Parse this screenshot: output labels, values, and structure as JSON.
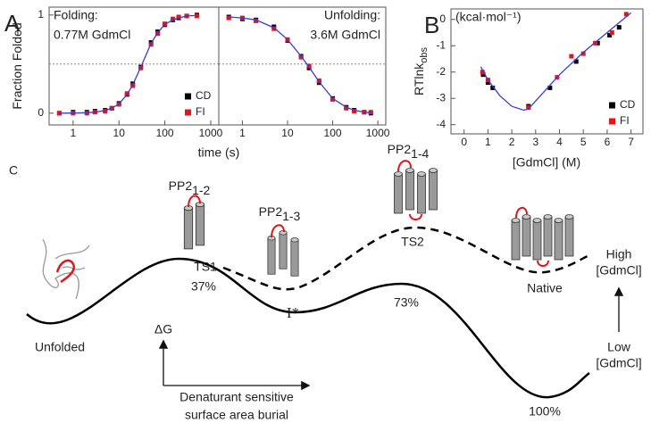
{
  "chart_data": [
    {
      "type": "scatter",
      "panel_label": "A",
      "xlog": true,
      "ylabel": "Fraction Folded",
      "xlabel": "time (s)",
      "annotation": [
        "Folding:",
        "0.77M GdmCl"
      ],
      "xlim": [
        0.3,
        1500
      ],
      "xticks": [
        1,
        10,
        100,
        1000
      ],
      "ylim": [
        -0.12,
        1.08
      ],
      "yticks": [
        0,
        1
      ],
      "hline": 0.5,
      "legend": "lower right",
      "x": [
        0.5,
        1,
        2,
        3,
        5,
        7,
        10,
        15,
        20,
        30,
        50,
        70,
        100,
        150,
        200,
        300,
        500
      ],
      "series": [
        {
          "name": "CD",
          "color": "#000000",
          "values": [
            0.0,
            0.01,
            0.01,
            0.02,
            0.03,
            0.05,
            0.1,
            0.19,
            0.3,
            0.47,
            0.72,
            0.83,
            0.9,
            0.95,
            0.97,
            0.99,
            1.0
          ]
        },
        {
          "name": "FI",
          "color": "#e0161b",
          "values": [
            0.0,
            0.0,
            0.0,
            0.01,
            0.02,
            0.05,
            0.09,
            0.2,
            0.28,
            0.46,
            0.7,
            0.81,
            0.91,
            0.96,
            0.98,
            0.99,
            0.99
          ]
        },
        {
          "mode": "line",
          "color": "#3b3bd6",
          "values": [
            0.0,
            0.001,
            0.005,
            0.01,
            0.027,
            0.05,
            0.095,
            0.19,
            0.29,
            0.47,
            0.71,
            0.82,
            0.905,
            0.95,
            0.97,
            0.99,
            0.995
          ]
        }
      ]
    },
    {
      "type": "scatter",
      "xlog": true,
      "annotation": [
        "Unfolding:",
        "3.6M GdmCl"
      ],
      "xlim": [
        0.3,
        1500
      ],
      "xticks": [
        1,
        10,
        100,
        1000
      ],
      "ylim": [
        -0.12,
        1.08
      ],
      "hline": 0.5,
      "x": [
        0.5,
        1,
        2,
        5,
        10,
        20,
        30,
        50,
        100,
        200,
        300,
        500,
        700
      ],
      "series": [
        {
          "color": "#000000",
          "values": [
            0.98,
            0.96,
            0.95,
            0.88,
            0.74,
            0.58,
            0.46,
            0.31,
            0.15,
            0.06,
            0.03,
            0.01,
            0.0
          ]
        },
        {
          "color": "#e0161b",
          "values": [
            0.97,
            0.97,
            0.94,
            0.86,
            0.75,
            0.57,
            0.48,
            0.33,
            0.14,
            0.05,
            0.02,
            0.01,
            0.01
          ]
        },
        {
          "mode": "line",
          "color": "#3b3bd6",
          "values": [
            0.98,
            0.97,
            0.95,
            0.87,
            0.75,
            0.58,
            0.47,
            0.32,
            0.15,
            0.06,
            0.03,
            0.01,
            0.005
          ]
        }
      ]
    },
    {
      "type": "scatter",
      "panel_label": "B",
      "xlog": false,
      "ylabel": "RTlnk",
      "ylabel_sub": "obs",
      "xlabel": "[GdmCl] (M)",
      "annotation": [
        "(kcal·mol⁻¹)"
      ],
      "xlim": [
        -0.55,
        7.5
      ],
      "xticks": [
        0,
        1,
        2,
        3,
        4,
        5,
        6,
        7
      ],
      "ylim": [
        -4.35,
        0.4
      ],
      "yticks": [
        0,
        -1,
        -2,
        -3,
        -4
      ],
      "legend": "lower right",
      "series": [
        {
          "name": "CD",
          "color": "#000000",
          "x": [
            0.8,
            1.0,
            1.2,
            2.7,
            3.6,
            4.7,
            5.6,
            6.1,
            6.5
          ],
          "values": [
            -2.1,
            -2.4,
            -2.6,
            -3.3,
            -2.6,
            -1.6,
            -0.9,
            -0.6,
            -0.3
          ]
        },
        {
          "name": "FI",
          "color": "#e0161b",
          "x": [
            0.77,
            1.0,
            2.7,
            3.9,
            4.5,
            5.0,
            5.5,
            6.2,
            6.8
          ],
          "values": [
            -2.0,
            -2.3,
            -3.35,
            -2.2,
            -1.4,
            -1.3,
            -0.9,
            -0.5,
            0.2
          ]
        },
        {
          "mode": "line",
          "color": "#3b3bd6",
          "x": [
            0.7,
            1,
            1.5,
            2,
            2.5,
            2.7,
            3,
            3.5,
            4,
            5,
            6,
            7
          ],
          "values": [
            -1.8,
            -2.3,
            -2.9,
            -3.3,
            -3.45,
            -3.4,
            -3.1,
            -2.6,
            -2.1,
            -1.25,
            -0.5,
            0.25
          ]
        }
      ]
    }
  ],
  "diagram": {
    "panel_label": "C",
    "pp2_12": {
      "base": "PP2",
      "sub": "1-2"
    },
    "ts1": "TS1",
    "ts1_phi": "37%",
    "pp2_13": {
      "base": "PP2",
      "sub": "1-3"
    },
    "intermediate": "I*",
    "pp2_14": {
      "base": "PP2",
      "sub": "1-4"
    },
    "ts2": "TS2",
    "ts2_phi": "73%",
    "native": "Native",
    "native_phi": "100%",
    "unfolded": "Unfolded",
    "dg": "ΔG",
    "x_axis": [
      "Denaturant sensitive",
      "surface area burial"
    ],
    "high": [
      "High",
      "[GdmCl]"
    ],
    "low": [
      "Low",
      "[GdmCl]"
    ]
  }
}
